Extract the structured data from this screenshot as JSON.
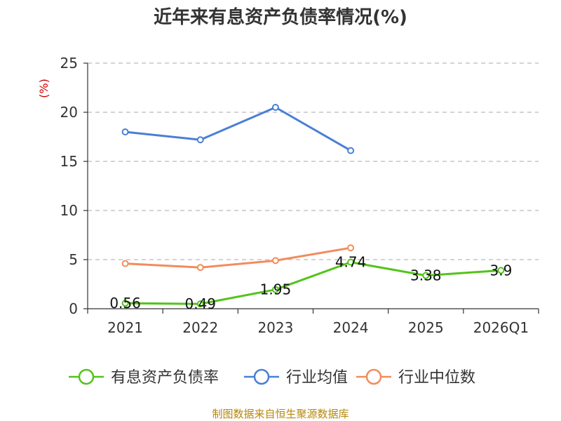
{
  "chart_data": {
    "type": "line",
    "title": "近年来有息资产负债率情况(%)",
    "ylabel": "(%)",
    "xlabel": "",
    "categories": [
      "2021",
      "2022",
      "2023",
      "2024",
      "2025",
      "2026Q1"
    ],
    "ylim": [
      0,
      25
    ],
    "yticks": [
      0,
      5,
      10,
      15,
      20,
      25
    ],
    "grid": true,
    "legend_position": "bottom",
    "series": [
      {
        "name": "有息资产负债率",
        "color": "#52c41a",
        "values": [
          0.56,
          0.49,
          1.95,
          4.74,
          3.38,
          3.9
        ],
        "labels": [
          "0.56",
          "0.49",
          "1.95",
          "4.74",
          "3.38",
          "3.9"
        ]
      },
      {
        "name": "行业均值",
        "color": "#4a7fd6",
        "values": [
          18.0,
          17.2,
          20.5,
          16.1,
          null,
          null
        ]
      },
      {
        "name": "行业中位数",
        "color": "#f28c5b",
        "values": [
          4.6,
          4.2,
          4.9,
          6.2,
          null,
          null
        ]
      }
    ]
  },
  "source": "制图数据来自恒生聚源数据库"
}
